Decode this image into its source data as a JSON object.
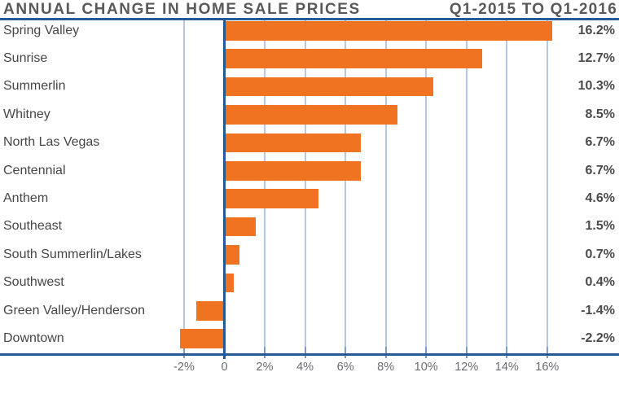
{
  "header": {
    "title_left": "ANNUAL CHANGE IN HOME SALE PRICES",
    "title_right": "Q1-2015 TO Q1-2016"
  },
  "chart_data": {
    "type": "bar",
    "orientation": "horizontal",
    "title": "ANNUAL CHANGE IN HOME SALE PRICES",
    "subtitle": "Q1-2015 TO Q1-2016",
    "categories": [
      "Spring Valley",
      "Sunrise",
      "Summerlin",
      "Whitney",
      "North Las Vegas",
      "Centennial",
      "Anthem",
      "Southeast",
      "South Summerlin/Lakes",
      "Southwest",
      "Green Valley/Henderson",
      "Downtown"
    ],
    "values": [
      16.2,
      12.7,
      10.3,
      8.5,
      6.7,
      6.7,
      4.6,
      1.5,
      0.7,
      0.4,
      -1.4,
      -2.2
    ],
    "value_labels": [
      "16.2%",
      "12.7%",
      "10.3%",
      "8.5%",
      "6.7%",
      "6.7%",
      "4.6%",
      "1.5%",
      "0.7%",
      "0.4%",
      "-1.4%",
      "-2.2%"
    ],
    "xlabel": "",
    "ylabel": "",
    "x_axis": {
      "ticks": [
        -2,
        0,
        2,
        4,
        6,
        8,
        10,
        12,
        14,
        16
      ],
      "tick_labels": [
        "-2%",
        "0",
        "2%",
        "4%",
        "6%",
        "8%",
        "10%",
        "12%",
        "14%",
        "16%"
      ],
      "min": -2,
      "max": 16,
      "unit": "percent"
    },
    "grid": true,
    "legend": false,
    "colors": {
      "bar": "#f07321",
      "axis_dark_blue": "#275a94",
      "gridline_light_blue": "#b4c9e4",
      "tick_blue": "#7c9cc6",
      "title_text": "#59595b",
      "category_text": "#464648",
      "value_text": "#4a4a4c",
      "tick_label_text": "#6a6b6e"
    }
  }
}
